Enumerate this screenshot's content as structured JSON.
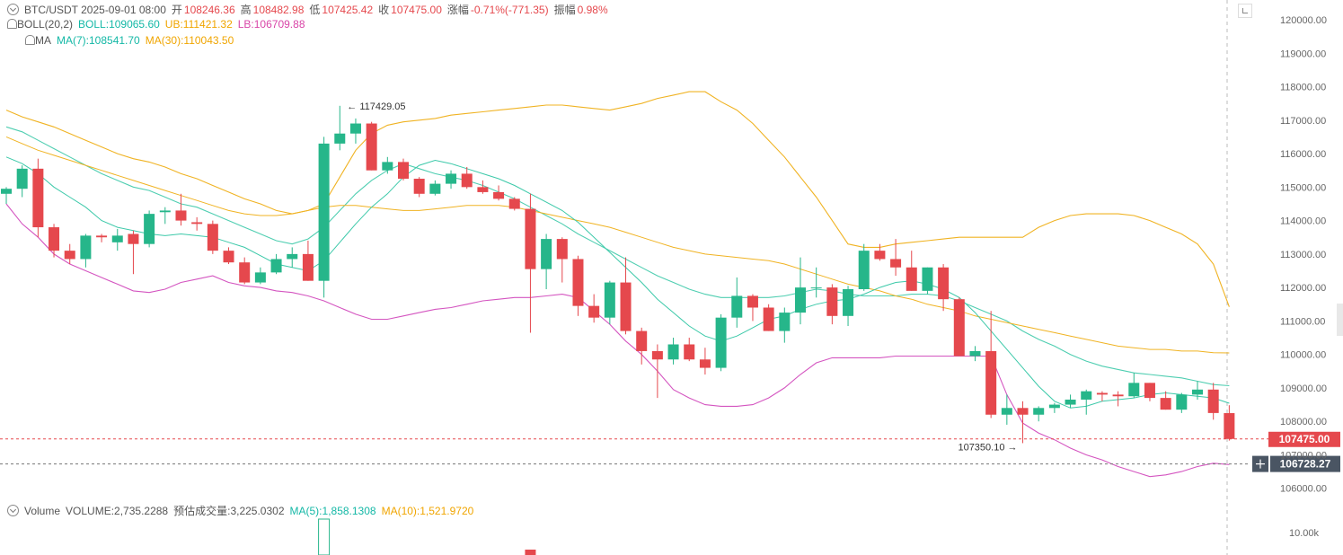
{
  "header": {
    "symbol_line": "BTC/USDT  2025-09-01 08:00",
    "open_label": "开",
    "open": "108246.36",
    "high_label": "高",
    "high": "108482.98",
    "low_label": "低",
    "low": "107425.42",
    "close_label": "收",
    "close": "107475.00",
    "change_label": "涨幅",
    "change": "-0.71%(-771.35)",
    "amp_label": "振幅",
    "amp": "0.98%",
    "boll_name": "BOLL(20,2)",
    "boll": "BOLL:109065.60",
    "ub": "UB:111421.32",
    "lb": "LB:106709.88",
    "ma_name": "MA",
    "ma7": "MA(7):108541.70",
    "ma30": "MA(30):110043.50"
  },
  "volume_header": {
    "name": "Volume",
    "volume": "VOLUME:2,735.2288",
    "est": "预估成交量:3,225.0302",
    "ma5": "MA(5):1,858.1308",
    "ma10": "MA(10):1,521.9720"
  },
  "colors": {
    "up": "#26b68a",
    "down": "#e5484d",
    "boll": "#3cc9a9",
    "ub": "#f0b323",
    "lb": "#d455c0",
    "price_tag": "#e5484d",
    "crosshair_tag": "#4a5563"
  },
  "price_tag": "107475.00",
  "crosshair_tag": "106728.27",
  "volume_axis_label": "10.00k",
  "chart_data": {
    "type": "candlestick",
    "ylim": [
      105500,
      120600
    ],
    "y_ticks": [
      "106000.00",
      "107000.00",
      "108000.00",
      "109000.00",
      "110000.00",
      "111000.00",
      "112000.00",
      "113000.00",
      "114000.00",
      "115000.00",
      "116000.00",
      "117000.00",
      "118000.00",
      "119000.00",
      "120000.00"
    ],
    "annotations": {
      "high_label": "117429.05",
      "high_index": 21,
      "low_label": "107350.10",
      "low_index": 64
    },
    "candles": [
      [
        114800,
        115000,
        114500,
        114950
      ],
      [
        114950,
        115650,
        114700,
        115550
      ],
      [
        115550,
        115850,
        113500,
        113800
      ],
      [
        113800,
        113900,
        112900,
        113100
      ],
      [
        113100,
        113300,
        112700,
        112850
      ],
      [
        112850,
        113600,
        112600,
        113550
      ],
      [
        113550,
        113600,
        113350,
        113500
      ],
      [
        113350,
        113750,
        113100,
        113550
      ],
      [
        113600,
        113700,
        112400,
        113300
      ],
      [
        113300,
        114300,
        113200,
        114200
      ],
      [
        114250,
        114400,
        113900,
        114300
      ],
      [
        114300,
        114800,
        113850,
        114000
      ],
      [
        113950,
        114100,
        113700,
        113900
      ],
      [
        113900,
        114000,
        113000,
        113100
      ],
      [
        113100,
        113200,
        112700,
        112750
      ],
      [
        112750,
        112900,
        112100,
        112150
      ],
      [
        112150,
        112600,
        112100,
        112450
      ],
      [
        112450,
        113000,
        112400,
        112850
      ],
      [
        112850,
        113200,
        112600,
        113000
      ],
      [
        113000,
        113400,
        112200,
        112200
      ],
      [
        112200,
        116500,
        111700,
        116300
      ],
      [
        116300,
        117429,
        116100,
        116600
      ],
      [
        116600,
        117050,
        116300,
        116900
      ],
      [
        116900,
        116950,
        115500,
        115500
      ],
      [
        115500,
        115900,
        115400,
        115750
      ],
      [
        115750,
        115850,
        115200,
        115250
      ],
      [
        115250,
        115300,
        114700,
        114800
      ],
      [
        114800,
        115200,
        114750,
        115100
      ],
      [
        115100,
        115500,
        114950,
        115400
      ],
      [
        115400,
        115600,
        114950,
        115000
      ],
      [
        115000,
        115200,
        114800,
        114850
      ],
      [
        114850,
        115050,
        114600,
        114650
      ],
      [
        114650,
        114700,
        114300,
        114350
      ],
      [
        114350,
        114800,
        110650,
        112550
      ],
      [
        112550,
        113600,
        111950,
        113450
      ],
      [
        113450,
        113500,
        112150,
        112850
      ],
      [
        112850,
        112950,
        111150,
        111450
      ],
      [
        111450,
        111800,
        110950,
        111100
      ],
      [
        111100,
        112200,
        110900,
        112150
      ],
      [
        112150,
        112900,
        110600,
        110700
      ],
      [
        110700,
        110800,
        109700,
        110100
      ],
      [
        110100,
        110300,
        108700,
        109850
      ],
      [
        109850,
        110500,
        109700,
        110300
      ],
      [
        110300,
        110500,
        109800,
        109850
      ],
      [
        109850,
        110200,
        109400,
        109600
      ],
      [
        109600,
        111200,
        109500,
        111100
      ],
      [
        111100,
        112300,
        110800,
        111750
      ],
      [
        111750,
        111800,
        111000,
        111400
      ],
      [
        111400,
        111500,
        110700,
        110700
      ],
      [
        110700,
        111400,
        110350,
        111250
      ],
      [
        111250,
        112900,
        110900,
        112000
      ],
      [
        112000,
        112600,
        111700,
        112000
      ],
      [
        112000,
        112100,
        110900,
        111150
      ],
      [
        111150,
        112050,
        110850,
        111950
      ],
      [
        111950,
        113300,
        111900,
        113100
      ],
      [
        113100,
        113300,
        112800,
        112850
      ],
      [
        112850,
        113450,
        112350,
        112600
      ],
      [
        112600,
        113100,
        111900,
        111900
      ],
      [
        111900,
        112600,
        111800,
        112600
      ],
      [
        112600,
        112700,
        111300,
        111650
      ],
      [
        111650,
        111700,
        109950,
        109950
      ],
      [
        109950,
        110250,
        109800,
        110100
      ],
      [
        110100,
        111300,
        108100,
        108200
      ],
      [
        108200,
        108800,
        107900,
        108400
      ],
      [
        108400,
        108600,
        107350,
        108200
      ],
      [
        108200,
        108450,
        108000,
        108400
      ],
      [
        108400,
        108550,
        108250,
        108500
      ],
      [
        108500,
        108800,
        108400,
        108650
      ],
      [
        108650,
        108950,
        108200,
        108900
      ],
      [
        108850,
        108900,
        108600,
        108800
      ],
      [
        108800,
        108900,
        108450,
        108750
      ],
      [
        108750,
        109450,
        108700,
        109150
      ],
      [
        109150,
        109150,
        108600,
        108700
      ],
      [
        108700,
        108900,
        108350,
        108350
      ],
      [
        108350,
        108850,
        108250,
        108800
      ],
      [
        108800,
        109200,
        108650,
        108950
      ],
      [
        108950,
        109150,
        108050,
        108250
      ],
      [
        108246.36,
        108482.98,
        107425.42,
        107475
      ]
    ],
    "series": [
      {
        "name": "BOLL",
        "values": [
          116800,
          116650,
          116400,
          116150,
          115900,
          115650,
          115400,
          115200,
          115000,
          114900,
          114700,
          114500,
          114400,
          114200,
          114000,
          113800,
          113600,
          113400,
          113300,
          113450,
          113800,
          114300,
          114800,
          115200,
          115500,
          115700,
          115550,
          115400,
          115300,
          115200,
          115050,
          114850,
          114650,
          114400,
          114150,
          113900,
          113600,
          113350,
          113100,
          112850,
          112600,
          112350,
          112150,
          111950,
          111800,
          111700,
          111700,
          111700,
          111700,
          111750,
          111850,
          111950,
          111900,
          111800,
          111750,
          111750,
          111750,
          111800,
          111800,
          111750,
          111600,
          111400,
          111200,
          111000,
          110700,
          110450,
          110250,
          110000,
          109800,
          109650,
          109550,
          109450,
          109400,
          109350,
          109300,
          109200,
          109100,
          109065.6
        ]
      },
      {
        "name": "UB",
        "values": [
          117300,
          117100,
          116950,
          116800,
          116600,
          116400,
          116200,
          116000,
          115850,
          115750,
          115600,
          115400,
          115250,
          115050,
          114850,
          114650,
          114500,
          114300,
          114200,
          114300,
          114500,
          115300,
          116100,
          116600,
          116850,
          116950,
          117000,
          117050,
          117150,
          117200,
          117250,
          117300,
          117350,
          117400,
          117450,
          117450,
          117400,
          117350,
          117300,
          117400,
          117500,
          117650,
          117750,
          117850,
          117850,
          117550,
          117300,
          116900,
          116400,
          115900,
          115300,
          114700,
          114000,
          113300,
          113200,
          113200,
          113300,
          113350,
          113400,
          113450,
          113500,
          113500,
          113500,
          113500,
          113500,
          113800,
          114000,
          114150,
          114200,
          114200,
          114200,
          114150,
          114000,
          113800,
          113600,
          113300,
          112700,
          111421.32
        ]
      },
      {
        "name": "LB",
        "values": [
          114500,
          113900,
          113500,
          113000,
          112700,
          112500,
          112300,
          112100,
          111900,
          111850,
          111950,
          112150,
          112250,
          112350,
          112150,
          112050,
          112000,
          111900,
          111850,
          111750,
          111600,
          111400,
          111200,
          111050,
          111050,
          111150,
          111250,
          111350,
          111400,
          111500,
          111600,
          111650,
          111700,
          111700,
          111750,
          111800,
          111700,
          111300,
          110900,
          110400,
          110000,
          109500,
          108950,
          108700,
          108500,
          108450,
          108450,
          108500,
          108700,
          109000,
          109400,
          109750,
          109900,
          109900,
          109900,
          109900,
          109950,
          109950,
          109950,
          109950,
          109950,
          109950,
          109950,
          108800,
          107950,
          107650,
          107450,
          107200,
          107000,
          106850,
          106650,
          106500,
          106350,
          106400,
          106500,
          106650,
          106750,
          106709.88
        ]
      },
      {
        "name": "MA(30)",
        "values": [
          116500,
          116300,
          116100,
          115950,
          115800,
          115650,
          115500,
          115350,
          115200,
          115050,
          114900,
          114750,
          114600,
          114450,
          114300,
          114200,
          114150,
          114150,
          114200,
          114300,
          114400,
          114450,
          114450,
          114400,
          114350,
          114300,
          114300,
          114350,
          114400,
          114450,
          114450,
          114450,
          114400,
          114300,
          114200,
          114100,
          114000,
          113900,
          113800,
          113650,
          113500,
          113350,
          113200,
          113100,
          113000,
          112950,
          112900,
          112850,
          112800,
          112700,
          112550,
          112400,
          112250,
          112100,
          112000,
          111900,
          111750,
          111650,
          111500,
          111400,
          111300,
          111150,
          111050,
          110950,
          110850,
          110750,
          110650,
          110550,
          110450,
          110350,
          110250,
          110200,
          110150,
          110150,
          110100,
          110100,
          110050,
          110043.5
        ]
      },
      {
        "name": "MA(7)",
        "values": [
          115900,
          115700,
          115400,
          115000,
          114700,
          114400,
          114000,
          113800,
          113700,
          113600,
          113550,
          113600,
          113550,
          113500,
          113350,
          113200,
          112950,
          112700,
          112600,
          112500,
          112800,
          113350,
          113900,
          114400,
          114800,
          115300,
          115650,
          115800,
          115700,
          115550,
          115400,
          115250,
          115050,
          114800,
          114550,
          114300,
          113950,
          113500,
          113050,
          112600,
          112150,
          111650,
          111250,
          110850,
          110550,
          110400,
          110550,
          110800,
          111050,
          111150,
          111350,
          111500,
          111600,
          111650,
          111800,
          112000,
          112150,
          112200,
          112100,
          111950,
          111700,
          111250,
          110700,
          110150,
          109600,
          109050,
          108600,
          108400,
          108450,
          108600,
          108650,
          108700,
          108800,
          108850,
          108800,
          108750,
          108700,
          108541.7
        ]
      }
    ],
    "volume": {
      "label_visible": "10.00k",
      "bars_visible": [
        {
          "index": 20,
          "dir": "up"
        },
        {
          "index": 33,
          "dir": "down"
        }
      ]
    }
  }
}
